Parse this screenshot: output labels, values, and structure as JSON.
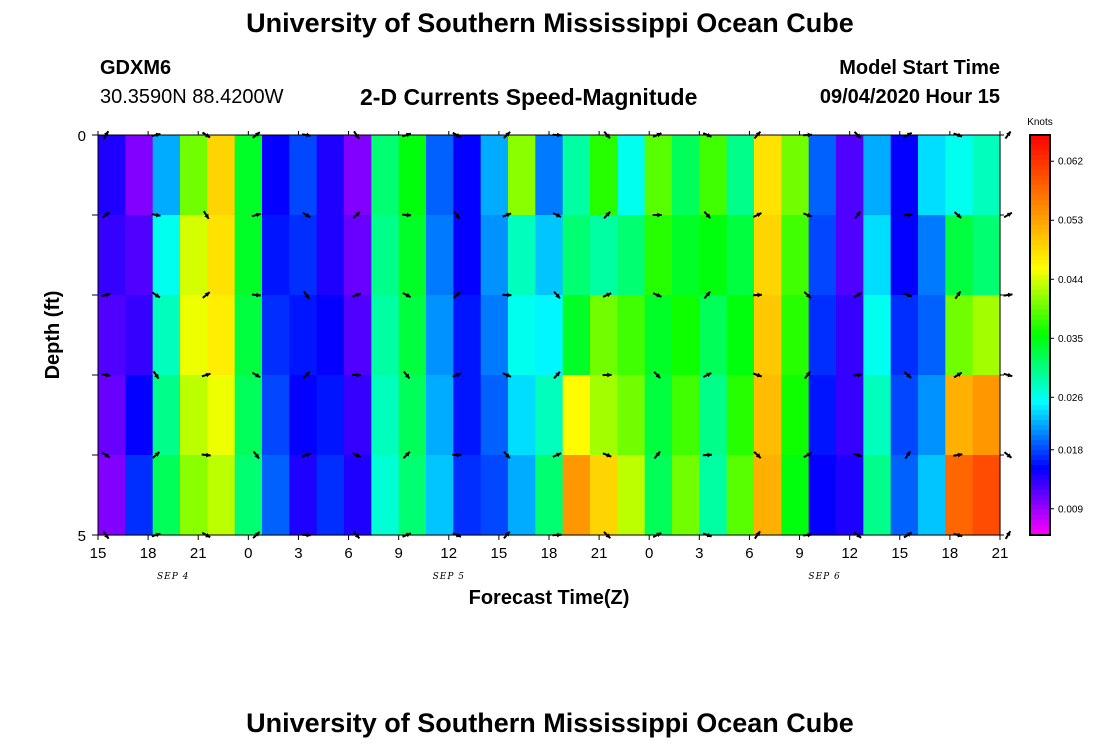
{
  "header": {
    "title": "University of Southern Mississippi Ocean Cube",
    "station_id": "GDXM6",
    "coordinates": "30.3590N 88.4200W",
    "subtitle": "2-D Currents Speed-Magnitude",
    "model_start_label": "Model Start Time",
    "model_start_value": "09/04/2020 Hour 15"
  },
  "footer": {
    "title": "University of Southern Mississippi Ocean Cube"
  },
  "chart_data": {
    "type": "heatmap",
    "title": "2-D Currents Speed-Magnitude",
    "xlabel": "Forecast Time(Z)",
    "ylabel": "Depth (ft)",
    "x_ticks": [
      "15",
      "18",
      "21",
      "0",
      "3",
      "6",
      "9",
      "12",
      "15",
      "18",
      "21",
      "0",
      "3",
      "6",
      "9",
      "12",
      "15",
      "18",
      "21"
    ],
    "x_range_hours": [
      0,
      54
    ],
    "day_labels": [
      {
        "hour": 4.5,
        "label": "SEP 4"
      },
      {
        "hour": 21,
        "label": "SEP 5"
      },
      {
        "hour": 43.5,
        "label": "SEP 6"
      }
    ],
    "y_ticks": [
      "0",
      "5"
    ],
    "y_range": [
      0,
      5
    ],
    "colorbar": {
      "title": "Knots",
      "ticks": [
        "0.062",
        "0.053",
        "0.044",
        "0.035",
        "0.026",
        "0.018",
        "0.009"
      ],
      "range": [
        0.005,
        0.066
      ],
      "colors": [
        "#ff00ff",
        "#7f00ff",
        "#0000ff",
        "#0080ff",
        "#00ffff",
        "#00ff80",
        "#00ff00",
        "#80ff00",
        "#ffff00",
        "#ffbf00",
        "#ff8000",
        "#ff4000",
        "#ff0000"
      ]
    },
    "depth_levels": 5,
    "speed_knots": [
      [
        0.014,
        0.01,
        0.022,
        0.04,
        0.049,
        0.034,
        0.015,
        0.018,
        0.014,
        0.01,
        0.031,
        0.035,
        0.019,
        0.015,
        0.022,
        0.041,
        0.02,
        0.029,
        0.037,
        0.026,
        0.039,
        0.032,
        0.038,
        0.03,
        0.048,
        0.04,
        0.019,
        0.012,
        0.022,
        0.015,
        0.024,
        0.026,
        0.028
      ],
      [
        0.013,
        0.012,
        0.026,
        0.044,
        0.048,
        0.034,
        0.016,
        0.017,
        0.014,
        0.011,
        0.03,
        0.034,
        0.02,
        0.015,
        0.021,
        0.028,
        0.023,
        0.031,
        0.029,
        0.031,
        0.037,
        0.034,
        0.035,
        0.033,
        0.049,
        0.038,
        0.018,
        0.012,
        0.024,
        0.015,
        0.02,
        0.033,
        0.031
      ],
      [
        0.012,
        0.013,
        0.028,
        0.045,
        0.047,
        0.033,
        0.017,
        0.016,
        0.015,
        0.012,
        0.029,
        0.033,
        0.021,
        0.016,
        0.02,
        0.026,
        0.025,
        0.034,
        0.04,
        0.038,
        0.034,
        0.036,
        0.032,
        0.035,
        0.05,
        0.037,
        0.017,
        0.013,
        0.026,
        0.017,
        0.019,
        0.04,
        0.042
      ],
      [
        0.011,
        0.015,
        0.03,
        0.043,
        0.045,
        0.032,
        0.018,
        0.015,
        0.016,
        0.013,
        0.028,
        0.032,
        0.022,
        0.016,
        0.019,
        0.024,
        0.028,
        0.046,
        0.042,
        0.04,
        0.033,
        0.038,
        0.03,
        0.037,
        0.051,
        0.036,
        0.016,
        0.013,
        0.028,
        0.018,
        0.021,
        0.052,
        0.054
      ],
      [
        0.01,
        0.017,
        0.032,
        0.041,
        0.043,
        0.031,
        0.019,
        0.014,
        0.017,
        0.014,
        0.027,
        0.031,
        0.023,
        0.017,
        0.018,
        0.022,
        0.031,
        0.054,
        0.049,
        0.043,
        0.032,
        0.04,
        0.029,
        0.039,
        0.052,
        0.035,
        0.015,
        0.014,
        0.03,
        0.019,
        0.023,
        0.058,
        0.06
      ]
    ]
  }
}
